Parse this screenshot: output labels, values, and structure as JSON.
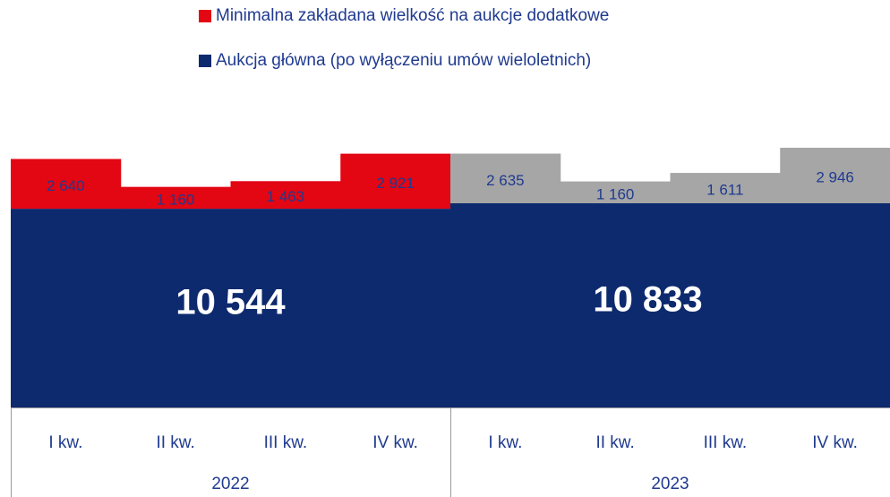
{
  "chart_data": {
    "type": "grouped-stack",
    "series": [
      {
        "name": "Minimalna zakładana wielkość na aukcje dodatkowe",
        "color": "#e30613"
      },
      {
        "name": "Aukcja główna (po wyłączeniu umów wieloletnich)",
        "color": "#0d2a6e"
      }
    ],
    "groups": [
      {
        "name": "2022",
        "categories": [
          "I kw.",
          "II kw.",
          "III kw.",
          "IV kw."
        ],
        "main": 10544,
        "main_label": "10 544",
        "values": [
          2640,
          1160,
          1463,
          2921
        ],
        "value_labels": [
          "2 640",
          "1 160",
          "1 463",
          "2 921"
        ],
        "color": "#e30613"
      },
      {
        "name": "2023",
        "categories": [
          "I kw.",
          "II kw.",
          "III kw.",
          "IV kw."
        ],
        "main": 10833,
        "main_label": "10 833",
        "values": [
          2635,
          1160,
          1611,
          2946
        ],
        "value_labels": [
          "2 635",
          "1 160",
          "1 611",
          "2 946"
        ],
        "color": "#a6a6a6"
      }
    ]
  }
}
